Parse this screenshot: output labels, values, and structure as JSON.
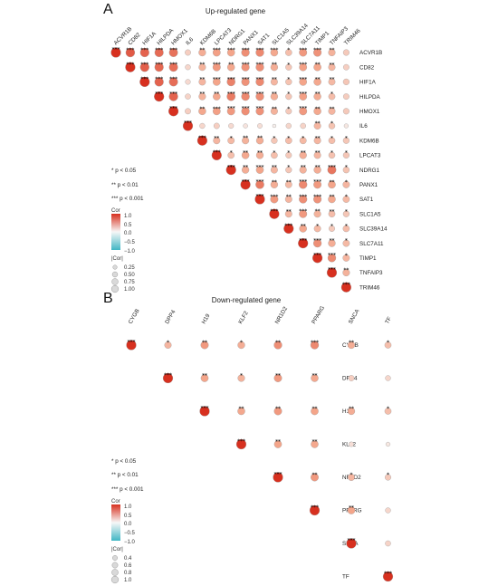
{
  "chart_data": [
    {
      "type": "heatmap",
      "panel": "A",
      "title": "Up-regulated gene",
      "genes": [
        "ACVR1B",
        "CD82",
        "HIF1A",
        "HILPDA",
        "HMOX1",
        "IL6",
        "KDM6B",
        "LPCAT3",
        "NDRG1",
        "PANX1",
        "SAT1",
        "SLC1A5",
        "SLC39A14",
        "SLC7A11",
        "TIMP1",
        "TNFAIP3",
        "TRIM46"
      ],
      "matrix_layout": "upper-triangle",
      "cor": [
        [
          1.0,
          0.82,
          0.78,
          0.75,
          0.72,
          0.25,
          0.45,
          0.52,
          0.5,
          0.6,
          0.62,
          0.48,
          0.35,
          0.55,
          0.58,
          0.42,
          0.28
        ],
        [
          null,
          1.0,
          0.8,
          0.76,
          0.73,
          0.2,
          0.42,
          0.55,
          0.48,
          0.58,
          0.6,
          0.45,
          0.3,
          0.52,
          0.5,
          0.4,
          0.25
        ],
        [
          null,
          null,
          1.0,
          0.78,
          0.74,
          0.18,
          0.4,
          0.5,
          0.65,
          0.58,
          0.62,
          0.4,
          0.32,
          0.5,
          0.48,
          0.38,
          0.3
        ],
        [
          null,
          null,
          null,
          1.0,
          0.78,
          0.22,
          0.42,
          0.48,
          0.68,
          0.62,
          0.6,
          0.45,
          0.3,
          0.52,
          0.46,
          0.36,
          0.26
        ],
        [
          null,
          null,
          null,
          null,
          1.0,
          0.25,
          0.48,
          0.52,
          0.55,
          0.6,
          0.58,
          0.42,
          0.28,
          0.55,
          0.48,
          0.4,
          0.28
        ],
        [
          null,
          null,
          null,
          null,
          null,
          1.0,
          0.2,
          0.25,
          0.18,
          0.12,
          0.15,
          0.05,
          0.2,
          0.22,
          0.4,
          0.32,
          0.1
        ],
        [
          null,
          null,
          null,
          null,
          null,
          null,
          1.0,
          0.4,
          0.38,
          0.42,
          0.45,
          0.3,
          0.36,
          0.38,
          0.4,
          0.35,
          0.3
        ],
        [
          null,
          null,
          null,
          null,
          null,
          null,
          null,
          1.0,
          0.35,
          0.48,
          0.45,
          0.35,
          0.28,
          0.45,
          0.4,
          0.33,
          0.3
        ],
        [
          null,
          null,
          null,
          null,
          null,
          null,
          null,
          null,
          1.0,
          0.45,
          0.5,
          0.4,
          0.3,
          0.42,
          0.45,
          0.7,
          0.32
        ],
        [
          null,
          null,
          null,
          null,
          null,
          null,
          null,
          null,
          null,
          1.0,
          0.68,
          0.45,
          0.38,
          0.62,
          0.55,
          0.5,
          0.4
        ],
        [
          null,
          null,
          null,
          null,
          null,
          null,
          null,
          null,
          null,
          null,
          1.0,
          0.55,
          0.4,
          0.6,
          0.58,
          0.48,
          0.38
        ],
        [
          null,
          null,
          null,
          null,
          null,
          null,
          null,
          null,
          null,
          null,
          null,
          1.0,
          0.4,
          0.55,
          0.42,
          0.36,
          0.3
        ],
        [
          null,
          null,
          null,
          null,
          null,
          null,
          null,
          null,
          null,
          null,
          null,
          null,
          1.0,
          0.48,
          0.38,
          0.28,
          0.36
        ],
        [
          null,
          null,
          null,
          null,
          null,
          null,
          null,
          null,
          null,
          null,
          null,
          null,
          null,
          1.0,
          0.6,
          0.45,
          0.38
        ],
        [
          null,
          null,
          null,
          null,
          null,
          null,
          null,
          null,
          null,
          null,
          null,
          null,
          null,
          null,
          1.0,
          0.62,
          0.4
        ],
        [
          null,
          null,
          null,
          null,
          null,
          null,
          null,
          null,
          null,
          null,
          null,
          null,
          null,
          null,
          null,
          1.0,
          0.42
        ],
        [
          null,
          null,
          null,
          null,
          null,
          null,
          null,
          null,
          null,
          null,
          null,
          null,
          null,
          null,
          null,
          null,
          1.0
        ]
      ],
      "stars": [
        [
          3,
          3,
          3,
          3,
          3,
          0,
          2,
          3,
          3,
          3,
          3,
          3,
          1,
          3,
          3,
          2,
          0
        ],
        [
          0,
          3,
          3,
          3,
          3,
          0,
          2,
          3,
          2,
          3,
          3,
          2,
          1,
          3,
          2,
          2,
          0
        ],
        [
          0,
          0,
          3,
          3,
          3,
          0,
          2,
          3,
          3,
          3,
          3,
          2,
          1,
          3,
          2,
          2,
          0
        ],
        [
          0,
          0,
          0,
          3,
          3,
          0,
          2,
          2,
          3,
          3,
          3,
          2,
          1,
          3,
          2,
          1,
          0
        ],
        [
          0,
          0,
          0,
          0,
          3,
          0,
          2,
          3,
          3,
          3,
          3,
          2,
          1,
          3,
          2,
          2,
          0
        ],
        [
          0,
          0,
          0,
          0,
          0,
          3,
          0,
          0,
          0,
          0,
          0,
          0,
          0,
          0,
          2,
          1,
          0
        ],
        [
          0,
          0,
          0,
          0,
          0,
          0,
          3,
          2,
          1,
          2,
          2,
          1,
          1,
          1,
          2,
          1,
          1
        ],
        [
          0,
          0,
          0,
          0,
          0,
          0,
          0,
          3,
          1,
          2,
          2,
          1,
          1,
          2,
          2,
          1,
          1
        ],
        [
          0,
          0,
          0,
          0,
          0,
          0,
          0,
          0,
          3,
          2,
          3,
          2,
          1,
          2,
          2,
          3,
          1
        ],
        [
          0,
          0,
          0,
          0,
          0,
          0,
          0,
          0,
          0,
          3,
          3,
          2,
          2,
          3,
          3,
          2,
          1
        ],
        [
          0,
          0,
          0,
          0,
          0,
          0,
          0,
          0,
          0,
          0,
          3,
          3,
          2,
          3,
          3,
          2,
          1
        ],
        [
          0,
          0,
          0,
          0,
          0,
          0,
          0,
          0,
          0,
          0,
          0,
          3,
          2,
          3,
          2,
          2,
          1
        ],
        [
          0,
          0,
          0,
          0,
          0,
          0,
          0,
          0,
          0,
          0,
          0,
          0,
          3,
          2,
          1,
          1,
          1
        ],
        [
          0,
          0,
          0,
          0,
          0,
          0,
          0,
          0,
          0,
          0,
          0,
          0,
          0,
          3,
          3,
          2,
          1
        ],
        [
          0,
          0,
          0,
          0,
          0,
          0,
          0,
          0,
          0,
          0,
          0,
          0,
          0,
          0,
          3,
          3,
          1
        ],
        [
          0,
          0,
          0,
          0,
          0,
          0,
          0,
          0,
          0,
          0,
          0,
          0,
          0,
          0,
          0,
          3,
          2
        ],
        [
          0,
          0,
          0,
          0,
          0,
          0,
          0,
          0,
          0,
          0,
          0,
          0,
          0,
          0,
          0,
          0,
          3
        ]
      ],
      "significance_notes": [
        "* p < 0.05",
        "** p < 0.01",
        "*** p < 0.001"
      ],
      "legend_cor": {
        "title": "Cor",
        "ticks": [
          "1.0",
          "0.5",
          "0.0",
          "−0.5",
          "−1.0"
        ],
        "range": [
          -1,
          1
        ]
      },
      "legend_abs": {
        "title": "|Cor|",
        "labels": [
          "0.25",
          "0.50",
          "0.75",
          "1.00"
        ],
        "values": [
          0.25,
          0.5,
          0.75,
          1.0
        ]
      }
    },
    {
      "type": "heatmap",
      "panel": "B",
      "title": "Down-regulated gene",
      "genes": [
        "CYGB",
        "DPP4",
        "H19",
        "KLF2",
        "NR1D2",
        "PPARG",
        "SNCA",
        "TF"
      ],
      "matrix_layout": "upper-triangle",
      "cor": [
        [
          1.0,
          0.4,
          0.55,
          0.45,
          0.6,
          0.62,
          0.45,
          0.35
        ],
        [
          null,
          1.0,
          0.5,
          0.42,
          0.55,
          0.48,
          0.25,
          0.2
        ],
        [
          null,
          null,
          1.0,
          0.48,
          0.55,
          0.5,
          0.45,
          0.35
        ],
        [
          null,
          null,
          null,
          1.0,
          0.5,
          0.48,
          0.15,
          0.1
        ],
        [
          null,
          null,
          null,
          null,
          1.0,
          0.55,
          0.4,
          0.28
        ],
        [
          null,
          null,
          null,
          null,
          null,
          1.0,
          0.5,
          0.2
        ],
        [
          null,
          null,
          null,
          null,
          null,
          null,
          1.0,
          0.22
        ],
        [
          null,
          null,
          null,
          null,
          null,
          null,
          null,
          1.0
        ]
      ],
      "stars": [
        [
          3,
          1,
          2,
          1,
          2,
          3,
          2,
          1
        ],
        [
          0,
          3,
          2,
          1,
          2,
          2,
          0,
          0
        ],
        [
          0,
          0,
          3,
          2,
          2,
          2,
          2,
          1
        ],
        [
          0,
          0,
          0,
          3,
          2,
          2,
          0,
          0
        ],
        [
          0,
          0,
          0,
          0,
          3,
          2,
          1,
          1
        ],
        [
          0,
          0,
          0,
          0,
          0,
          3,
          2,
          0
        ],
        [
          0,
          0,
          0,
          0,
          0,
          0,
          3,
          0
        ],
        [
          0,
          0,
          0,
          0,
          0,
          0,
          0,
          3
        ]
      ],
      "significance_notes": [
        "* p < 0.05",
        "** p < 0.01",
        "*** p < 0.001"
      ],
      "legend_cor": {
        "title": "Cor",
        "ticks": [
          "1.0",
          "0.5",
          "0.0",
          "−0.5",
          "−1.0"
        ],
        "range": [
          -1,
          1
        ]
      },
      "legend_abs": {
        "title": "|Cor|",
        "labels": [
          "0.4",
          "0.6",
          "0.8",
          "1.0"
        ],
        "values": [
          0.4,
          0.6,
          0.8,
          1.0
        ]
      }
    }
  ],
  "colors": {
    "positive_high": "#d7301f",
    "positive_mid": "#f4a58a",
    "neutral": "#f7f7f7",
    "negative_mid": "#a6dce8",
    "negative_high": "#41b6c4"
  }
}
